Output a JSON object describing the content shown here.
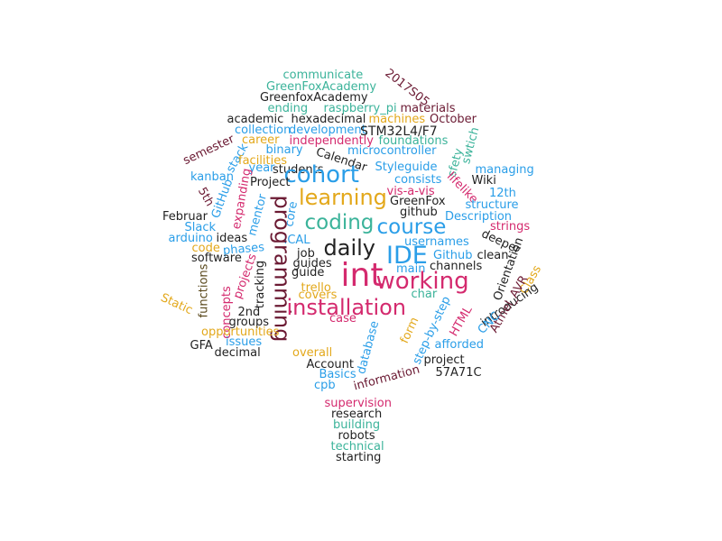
{
  "palette": {
    "teal": "#3bb39a",
    "blue": "#2a9ee8",
    "magenta": "#d42a6e",
    "gold": "#e3a81b",
    "dark": "#222222",
    "olive": "#5b4a1e",
    "maroon": "#6b1a33"
  },
  "words": [
    {
      "text": "communicate",
      "color": "teal"
    },
    {
      "text": "GreenFoxAcademy",
      "color": "teal"
    },
    {
      "text": "GreenfoxAcademy",
      "color": "dark"
    },
    {
      "text": "2017S05",
      "color": "maroon"
    },
    {
      "text": "ending",
      "color": "teal"
    },
    {
      "text": "raspberry_pi",
      "color": "teal"
    },
    {
      "text": "materials",
      "color": "maroon"
    },
    {
      "text": "academic",
      "color": "dark"
    },
    {
      "text": "hexadecimal",
      "color": "dark"
    },
    {
      "text": "machines",
      "color": "gold"
    },
    {
      "text": "October",
      "color": "maroon"
    },
    {
      "text": "collection",
      "color": "blue"
    },
    {
      "text": "development",
      "color": "blue"
    },
    {
      "text": "STM32L4/F7",
      "color": "dark"
    },
    {
      "text": "career",
      "color": "gold"
    },
    {
      "text": "independently",
      "color": "magenta"
    },
    {
      "text": "foundations",
      "color": "teal"
    },
    {
      "text": "swtich",
      "color": "teal"
    },
    {
      "text": "binary",
      "color": "blue"
    },
    {
      "text": "microcontroller",
      "color": "blue"
    },
    {
      "text": "semester",
      "color": "maroon"
    },
    {
      "text": "stack",
      "color": "blue"
    },
    {
      "text": "facilities",
      "color": "gold"
    },
    {
      "text": "Calendar",
      "color": "dark"
    },
    {
      "text": "sfety",
      "color": "teal"
    },
    {
      "text": "year",
      "color": "blue"
    },
    {
      "text": "students",
      "color": "dark"
    },
    {
      "text": "Styleguide",
      "color": "blue"
    },
    {
      "text": "managing",
      "color": "blue"
    },
    {
      "text": "kanban",
      "color": "blue"
    },
    {
      "text": "cohort",
      "color": "blue"
    },
    {
      "text": "Project",
      "color": "dark"
    },
    {
      "text": "consists",
      "color": "blue"
    },
    {
      "text": "Wiki",
      "color": "dark"
    },
    {
      "text": "lifelike",
      "color": "magenta"
    },
    {
      "text": "vis-a-vis",
      "color": "magenta"
    },
    {
      "text": "12th",
      "color": "blue"
    },
    {
      "text": "5th",
      "color": "maroon"
    },
    {
      "text": "GitHub",
      "color": "blue"
    },
    {
      "text": "learning",
      "color": "gold"
    },
    {
      "text": "GreenFox",
      "color": "dark"
    },
    {
      "text": "structure",
      "color": "blue"
    },
    {
      "text": "Februar",
      "color": "dark"
    },
    {
      "text": "expanding",
      "color": "magenta"
    },
    {
      "text": "mentor",
      "color": "blue"
    },
    {
      "text": "core",
      "color": "blue"
    },
    {
      "text": "github",
      "color": "dark"
    },
    {
      "text": "Description",
      "color": "blue"
    },
    {
      "text": "Slack",
      "color": "blue"
    },
    {
      "text": "coding",
      "color": "teal"
    },
    {
      "text": "course",
      "color": "blue"
    },
    {
      "text": "strings",
      "color": "magenta"
    },
    {
      "text": "arduino",
      "color": "blue"
    },
    {
      "text": "ideas",
      "color": "dark"
    },
    {
      "text": "ICAL",
      "color": "blue"
    },
    {
      "text": "usernames",
      "color": "blue"
    },
    {
      "text": "deeper",
      "color": "dark"
    },
    {
      "text": "code",
      "color": "gold"
    },
    {
      "text": "phases",
      "color": "blue"
    },
    {
      "text": "daily",
      "color": "dark"
    },
    {
      "text": "IDE",
      "color": "blue"
    },
    {
      "text": "Orientation",
      "color": "dark"
    },
    {
      "text": "software",
      "color": "dark"
    },
    {
      "text": "job",
      "color": "dark"
    },
    {
      "text": "Github",
      "color": "blue"
    },
    {
      "text": "clean",
      "color": "dark"
    },
    {
      "text": "Class",
      "color": "gold"
    },
    {
      "text": "guides",
      "color": "dark"
    },
    {
      "text": "channels",
      "color": "dark"
    },
    {
      "text": "functions",
      "color": "olive"
    },
    {
      "text": "main",
      "color": "blue"
    },
    {
      "text": "programming",
      "color": "maroon"
    },
    {
      "text": "int",
      "color": "magenta"
    },
    {
      "text": "working",
      "color": "magenta"
    },
    {
      "text": "projects",
      "color": "magenta"
    },
    {
      "text": "tracking",
      "color": "dark"
    },
    {
      "text": "guide",
      "color": "dark"
    },
    {
      "text": "trello",
      "color": "gold"
    },
    {
      "text": "Static",
      "color": "gold"
    },
    {
      "text": "covers",
      "color": "gold"
    },
    {
      "text": "char",
      "color": "teal"
    },
    {
      "text": "introducing",
      "color": "dark"
    },
    {
      "text": "concepts",
      "color": "magenta"
    },
    {
      "text": "2nd",
      "color": "dark"
    },
    {
      "text": "installation",
      "color": "magenta"
    },
    {
      "text": "Atmel_AVR",
      "color": "maroon"
    },
    {
      "text": "groups",
      "color": "dark"
    },
    {
      "text": "HTML",
      "color": "magenta"
    },
    {
      "text": "step-by-step",
      "color": "blue"
    },
    {
      "text": "opportunities",
      "color": "gold"
    },
    {
      "text": "case",
      "color": "magenta"
    },
    {
      "text": "CNC",
      "color": "blue"
    },
    {
      "text": "form",
      "color": "gold"
    },
    {
      "text": "GFA",
      "color": "dark"
    },
    {
      "text": "issues",
      "color": "blue"
    },
    {
      "text": "afforded",
      "color": "blue"
    },
    {
      "text": "decimal",
      "color": "dark"
    },
    {
      "text": "overall",
      "color": "gold"
    },
    {
      "text": "project",
      "color": "dark"
    },
    {
      "text": "Account",
      "color": "dark"
    },
    {
      "text": "database",
      "color": "blue"
    },
    {
      "text": "57A71C",
      "color": "dark"
    },
    {
      "text": "Basics",
      "color": "blue"
    },
    {
      "text": "information",
      "color": "maroon"
    },
    {
      "text": "cpb",
      "color": "blue"
    },
    {
      "text": "supervision",
      "color": "magenta"
    },
    {
      "text": "research",
      "color": "dark"
    },
    {
      "text": "building",
      "color": "teal"
    },
    {
      "text": "robots",
      "color": "dark"
    },
    {
      "text": "technical",
      "color": "teal"
    },
    {
      "text": "starting",
      "color": "dark"
    }
  ]
}
